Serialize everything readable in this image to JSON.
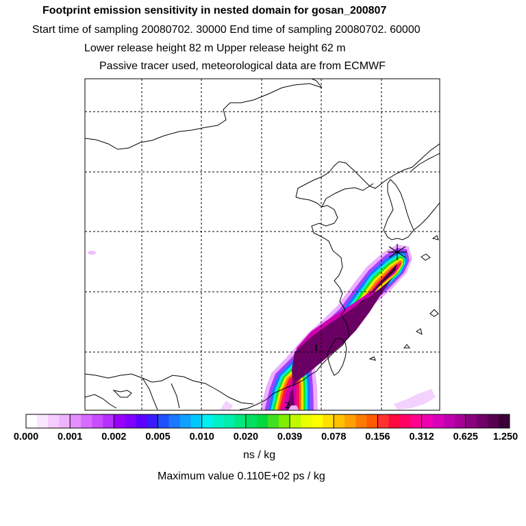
{
  "header": {
    "title": "Footprint emission sensitivity in nested domain for gosan_200807",
    "line2": "Start time of sampling 20080702. 30000     End time of sampling 20080702. 60000",
    "line3": "Lower release height   82 m          Upper release height   62 m",
    "line4": "Passive tracer used, meteorological data are from ECMWF"
  },
  "chart_data": {
    "type": "heatmap",
    "title": "Footprint emission sensitivity in nested domain for gosan_200807",
    "colorbar": {
      "tick_labels": [
        "0.000",
        "0.001",
        "0.002",
        "0.005",
        "0.010",
        "0.020",
        "0.039",
        "0.078",
        "0.156",
        "0.312",
        "0.625",
        "1.250"
      ],
      "tick_values": [
        0.0,
        0.001,
        0.002,
        0.005,
        0.01,
        0.02,
        0.039,
        0.078,
        0.156,
        0.312,
        0.625,
        1.25
      ],
      "units": "ns / kg",
      "colors": [
        "#ffffff",
        "#fbe6ff",
        "#f5ccff",
        "#eeb3ff",
        "#e48fff",
        "#d86bff",
        "#c94dff",
        "#b52fff",
        "#9b00ff",
        "#8000ff",
        "#5a00ff",
        "#3c1aff",
        "#1f50ff",
        "#1a78ff",
        "#10a0ff",
        "#00c8ff",
        "#00f0f0",
        "#00f0c8",
        "#00eeaa",
        "#00e880",
        "#00e060",
        "#00d840",
        "#40e020",
        "#80ee00",
        "#c0f800",
        "#e8ff00",
        "#ffff00",
        "#ffe000",
        "#ffc000",
        "#ffa000",
        "#ff7a00",
        "#ff5a00",
        "#ff3030",
        "#ff0a40",
        "#ff0066",
        "#ff0090",
        "#f000b0",
        "#d800b8",
        "#c000b0",
        "#a60098",
        "#8a0080",
        "#700068",
        "#580050",
        "#3a0038"
      ]
    },
    "release_markers": [
      "1",
      "2"
    ],
    "max_value_text": "Maximum value  0.110E+02 ps / kg"
  }
}
